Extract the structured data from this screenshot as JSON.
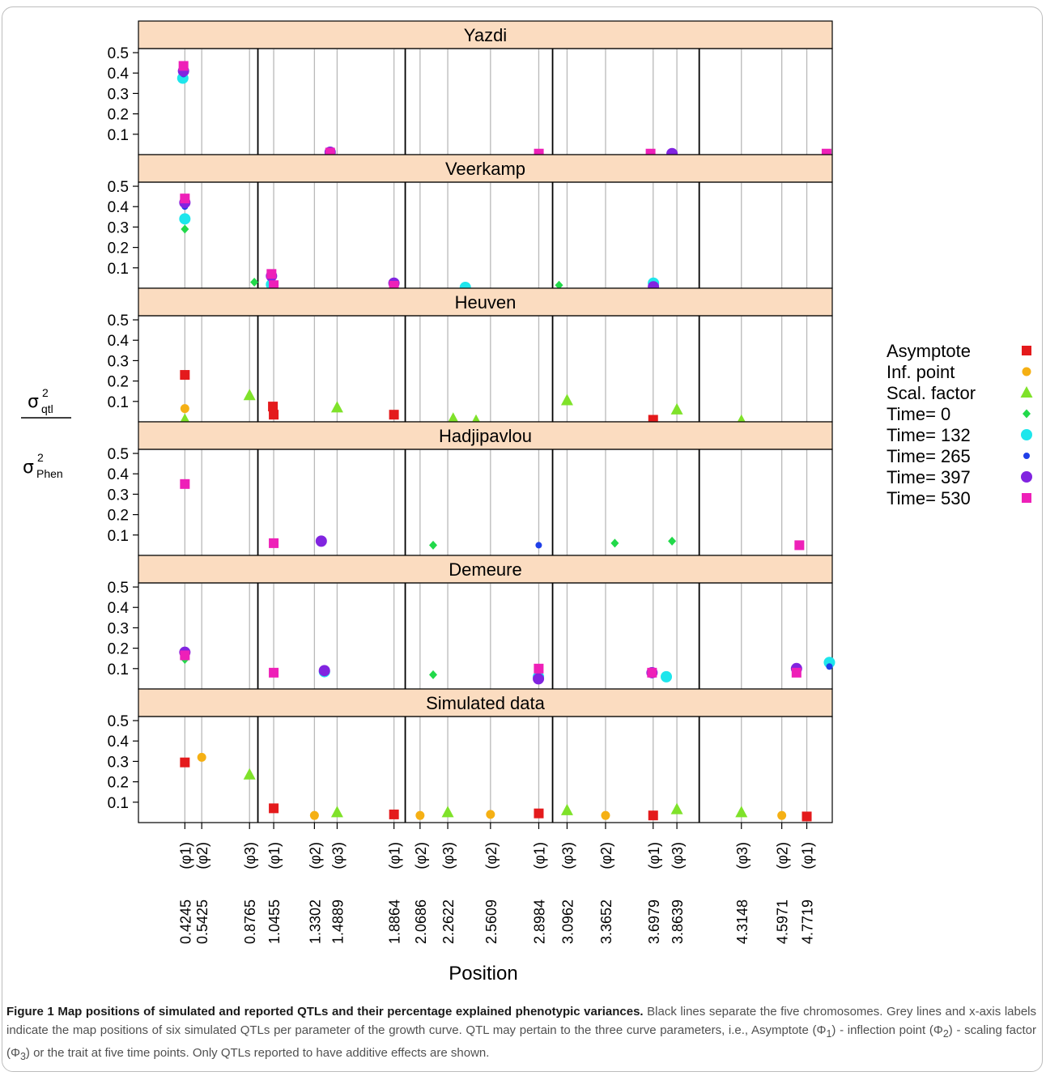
{
  "chart_data": {
    "type": "scatter",
    "xlabel": "Position",
    "ylabel": {
      "numerator_sym": "σ",
      "numerator_sup": "2",
      "numerator_sub": "qtl",
      "denominator_sym": "σ",
      "denominator_sup": "2",
      "denominator_sub": "Phen"
    },
    "xlim": [
      0.1,
      4.95
    ],
    "ylim": [
      0,
      0.52
    ],
    "y_ticks": [
      "0.1",
      "0.2",
      "0.3",
      "0.4",
      "0.5"
    ],
    "chromosome_boundaries": [
      0.935,
      1.965,
      2.995,
      4.02
    ],
    "grey_lines": [
      {
        "position": "0.4245",
        "param": "(φ1)",
        "value": 0.4245
      },
      {
        "position": "0.5425",
        "param": "(φ2)",
        "value": 0.5425
      },
      {
        "position": "0.8765",
        "param": "(φ3)",
        "value": 0.8765
      },
      {
        "position": "1.0455",
        "param": "(φ1)",
        "value": 1.0455
      },
      {
        "position": "1.3302",
        "param": "(φ2)",
        "value": 1.3302
      },
      {
        "position": "1.4889",
        "param": "(φ3)",
        "value": 1.4889
      },
      {
        "position": "1.8864",
        "param": "(φ1)",
        "value": 1.8864
      },
      {
        "position": "2.0686",
        "param": "(φ2)",
        "value": 2.0686
      },
      {
        "position": "2.2622",
        "param": "(φ3)",
        "value": 2.2622
      },
      {
        "position": "2.5609",
        "param": "(φ2)",
        "value": 2.5609
      },
      {
        "position": "2.8984",
        "param": "(φ1)",
        "value": 2.8984
      },
      {
        "position": "3.0962",
        "param": "(φ3)",
        "value": 3.0962
      },
      {
        "position": "3.3652",
        "param": "(φ2)",
        "value": 3.3652
      },
      {
        "position": "3.6979",
        "param": "(φ1)",
        "value": 3.6979
      },
      {
        "position": "3.8639",
        "param": "(φ3)",
        "value": 3.8639
      },
      {
        "position": "4.3148",
        "param": "(φ3)",
        "value": 4.3148
      },
      {
        "position": "4.5971",
        "param": "(φ2)",
        "value": 4.5971
      },
      {
        "position": "4.7719",
        "param": "(φ1)",
        "value": 4.7719
      }
    ],
    "legend": [
      {
        "key": "asym",
        "label": "Asymptote",
        "color": "#e41a1c",
        "shape": "square"
      },
      {
        "key": "inf",
        "label": "Inf. point",
        "color": "#f5b014",
        "shape": "circle-small"
      },
      {
        "key": "scal",
        "label": "Scal. factor",
        "color": "#7fe22a",
        "shape": "triangle"
      },
      {
        "key": "t0",
        "label": "Time= 0",
        "color": "#22d94a",
        "shape": "diamond"
      },
      {
        "key": "t132",
        "label": "Time= 132",
        "color": "#1ee6ec",
        "shape": "circle-large"
      },
      {
        "key": "t265",
        "label": "Time= 265",
        "color": "#1f3fe8",
        "shape": "circle-tiny"
      },
      {
        "key": "t397",
        "label": "Time= 397",
        "color": "#8124e0",
        "shape": "circle-large"
      },
      {
        "key": "t530",
        "label": "Time= 530",
        "color": "#ee20b8",
        "shape": "square"
      }
    ],
    "panels": [
      {
        "title": "Yazdi",
        "points": [
          {
            "x": 0.41,
            "y": 0.375,
            "s": "t132"
          },
          {
            "x": 0.415,
            "y": 0.395,
            "s": "t265"
          },
          {
            "x": 0.415,
            "y": 0.41,
            "s": "t397"
          },
          {
            "x": 0.415,
            "y": 0.435,
            "s": "t530"
          },
          {
            "x": 1.44,
            "y": 0.012,
            "s": "t397"
          },
          {
            "x": 1.44,
            "y": 0.01,
            "s": "t530"
          },
          {
            "x": 2.899,
            "y": 0.005,
            "s": "t530"
          },
          {
            "x": 3.68,
            "y": 0.005,
            "s": "t530"
          },
          {
            "x": 3.83,
            "y": 0.005,
            "s": "t397"
          },
          {
            "x": 4.91,
            "y": 0.005,
            "s": "t530"
          }
        ]
      },
      {
        "title": "Veerkamp",
        "points": [
          {
            "x": 0.4245,
            "y": 0.29,
            "s": "t0"
          },
          {
            "x": 0.4245,
            "y": 0.34,
            "s": "t132"
          },
          {
            "x": 0.4245,
            "y": 0.4,
            "s": "t265"
          },
          {
            "x": 0.4245,
            "y": 0.42,
            "s": "t397"
          },
          {
            "x": 0.4245,
            "y": 0.44,
            "s": "t530"
          },
          {
            "x": 0.91,
            "y": 0.03,
            "s": "t0"
          },
          {
            "x": 1.03,
            "y": 0.018,
            "s": "t132"
          },
          {
            "x": 1.03,
            "y": 0.06,
            "s": "t397"
          },
          {
            "x": 1.03,
            "y": 0.07,
            "s": "t530"
          },
          {
            "x": 1.0455,
            "y": 0.015,
            "s": "t530"
          },
          {
            "x": 1.886,
            "y": 0.025,
            "s": "t397"
          },
          {
            "x": 1.886,
            "y": 0.012,
            "s": "t530"
          },
          {
            "x": 2.385,
            "y": 0.003,
            "s": "t132"
          },
          {
            "x": 3.04,
            "y": 0.015,
            "s": "t0"
          },
          {
            "x": 3.7,
            "y": 0.025,
            "s": "t132"
          },
          {
            "x": 3.7,
            "y": 0.007,
            "s": "t397"
          }
        ]
      },
      {
        "title": "Heuven",
        "points": [
          {
            "x": 0.4245,
            "y": 0.23,
            "s": "asym"
          },
          {
            "x": 0.4245,
            "y": 0.065,
            "s": "inf"
          },
          {
            "x": 0.4245,
            "y": 0.01,
            "s": "scal"
          },
          {
            "x": 0.8765,
            "y": 0.13,
            "s": "scal"
          },
          {
            "x": 1.04,
            "y": 0.075,
            "s": "asym"
          },
          {
            "x": 1.0455,
            "y": 0.035,
            "s": "asym"
          },
          {
            "x": 1.4889,
            "y": 0.07,
            "s": "scal"
          },
          {
            "x": 1.886,
            "y": 0.035,
            "s": "asym"
          },
          {
            "x": 2.3,
            "y": 0.015,
            "s": "scal"
          },
          {
            "x": 2.46,
            "y": 0.005,
            "s": "scal"
          },
          {
            "x": 3.0962,
            "y": 0.105,
            "s": "scal"
          },
          {
            "x": 3.6979,
            "y": 0.01,
            "s": "asym"
          },
          {
            "x": 3.8639,
            "y": 0.06,
            "s": "scal"
          },
          {
            "x": 4.3148,
            "y": 0.005,
            "s": "scal"
          }
        ]
      },
      {
        "title": "Hadjipavlou",
        "points": [
          {
            "x": 0.4245,
            "y": 0.35,
            "s": "t530"
          },
          {
            "x": 1.0455,
            "y": 0.06,
            "s": "t530"
          },
          {
            "x": 1.378,
            "y": 0.07,
            "s": "t397"
          },
          {
            "x": 2.16,
            "y": 0.05,
            "s": "t0"
          },
          {
            "x": 2.898,
            "y": 0.05,
            "s": "t265"
          },
          {
            "x": 3.43,
            "y": 0.06,
            "s": "t0"
          },
          {
            "x": 3.83,
            "y": 0.07,
            "s": "t0"
          },
          {
            "x": 4.72,
            "y": 0.05,
            "s": "t530"
          }
        ]
      },
      {
        "title": "Demeure",
        "points": [
          {
            "x": 0.4245,
            "y": 0.145,
            "s": "t0"
          },
          {
            "x": 0.4245,
            "y": 0.18,
            "s": "t397"
          },
          {
            "x": 0.4245,
            "y": 0.165,
            "s": "t530"
          },
          {
            "x": 1.0455,
            "y": 0.08,
            "s": "t530"
          },
          {
            "x": 1.4,
            "y": 0.085,
            "s": "t132"
          },
          {
            "x": 1.4,
            "y": 0.09,
            "s": "t397"
          },
          {
            "x": 2.16,
            "y": 0.07,
            "s": "t0"
          },
          {
            "x": 2.896,
            "y": 0.06,
            "s": "t132"
          },
          {
            "x": 2.896,
            "y": 0.05,
            "s": "t397"
          },
          {
            "x": 2.898,
            "y": 0.1,
            "s": "t530"
          },
          {
            "x": 3.69,
            "y": 0.08,
            "s": "t397"
          },
          {
            "x": 3.69,
            "y": 0.08,
            "s": "t530"
          },
          {
            "x": 3.79,
            "y": 0.06,
            "s": "t132"
          },
          {
            "x": 4.7,
            "y": 0.1,
            "s": "t397"
          },
          {
            "x": 4.7,
            "y": 0.08,
            "s": "t530"
          },
          {
            "x": 4.93,
            "y": 0.13,
            "s": "t132"
          },
          {
            "x": 4.93,
            "y": 0.11,
            "s": "t265"
          }
        ]
      },
      {
        "title": "Simulated data",
        "points": [
          {
            "x": 0.4245,
            "y": 0.295,
            "s": "asym"
          },
          {
            "x": 0.5425,
            "y": 0.32,
            "s": "inf"
          },
          {
            "x": 0.8765,
            "y": 0.235,
            "s": "scal"
          },
          {
            "x": 1.0455,
            "y": 0.07,
            "s": "asym"
          },
          {
            "x": 1.3302,
            "y": 0.035,
            "s": "inf"
          },
          {
            "x": 1.4889,
            "y": 0.05,
            "s": "scal"
          },
          {
            "x": 1.8864,
            "y": 0.04,
            "s": "asym"
          },
          {
            "x": 2.0686,
            "y": 0.035,
            "s": "inf"
          },
          {
            "x": 2.2622,
            "y": 0.05,
            "s": "scal"
          },
          {
            "x": 2.5609,
            "y": 0.04,
            "s": "inf"
          },
          {
            "x": 2.8984,
            "y": 0.045,
            "s": "asym"
          },
          {
            "x": 3.0962,
            "y": 0.06,
            "s": "scal"
          },
          {
            "x": 3.3652,
            "y": 0.035,
            "s": "inf"
          },
          {
            "x": 3.6979,
            "y": 0.035,
            "s": "asym"
          },
          {
            "x": 3.8639,
            "y": 0.065,
            "s": "scal"
          },
          {
            "x": 4.3148,
            "y": 0.05,
            "s": "scal"
          },
          {
            "x": 4.5971,
            "y": 0.035,
            "s": "inf"
          },
          {
            "x": 4.7719,
            "y": 0.03,
            "s": "asym"
          }
        ]
      }
    ]
  },
  "caption": {
    "label": "Figure 1",
    "title": "Map positions of simulated and reported QTLs and their percentage explained phenotypic variances.",
    "text_before": "Black lines separate the five chromosomes. Grey lines and x-axis labels indicate the map positions of six simulated QTLs per parameter of the growth curve. QTL may pertain to the three curve parameters, i.e., Asymptote (",
    "phi1": "Φ",
    "phi1_sub": "1",
    "text_mid1": ") - inflection point (",
    "phi2": "Φ",
    "phi2_sub": "2",
    "text_mid2": ") - scaling factor (",
    "phi3": "Φ",
    "phi3_sub": "3",
    "text_after": ") or the trait at five time points. Only QTLs reported to have additive effects are shown."
  }
}
